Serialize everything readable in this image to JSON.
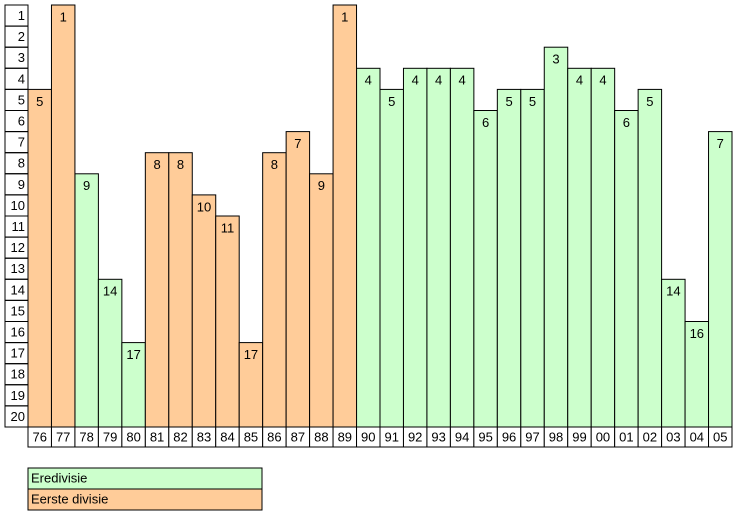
{
  "chart_data": {
    "type": "bar",
    "categories": [
      "76",
      "77",
      "78",
      "79",
      "80",
      "81",
      "82",
      "83",
      "84",
      "85",
      "86",
      "87",
      "88",
      "89",
      "90",
      "91",
      "92",
      "93",
      "94",
      "95",
      "96",
      "97",
      "98",
      "99",
      "00",
      "01",
      "02",
      "03",
      "04",
      "05"
    ],
    "series": [
      {
        "name": "Eredivisie",
        "color": "#ccffcc",
        "values": [
          null,
          null,
          9,
          14,
          17,
          null,
          null,
          null,
          null,
          null,
          null,
          null,
          null,
          null,
          4,
          5,
          4,
          4,
          4,
          6,
          5,
          5,
          3,
          4,
          4,
          6,
          5,
          14,
          16,
          7
        ]
      },
      {
        "name": "Eerste divisie",
        "color": "#ffcc99",
        "values": [
          5,
          1,
          null,
          null,
          null,
          8,
          8,
          10,
          11,
          17,
          8,
          7,
          9,
          1,
          null,
          null,
          null,
          null,
          null,
          null,
          null,
          null,
          null,
          null,
          null,
          null,
          null,
          null,
          null,
          null
        ]
      }
    ],
    "ylim": [
      1,
      21
    ],
    "yticks": [
      1,
      2,
      3,
      4,
      5,
      6,
      7,
      8,
      9,
      10,
      11,
      12,
      13,
      14,
      15,
      16,
      17,
      18,
      19,
      20
    ]
  }
}
